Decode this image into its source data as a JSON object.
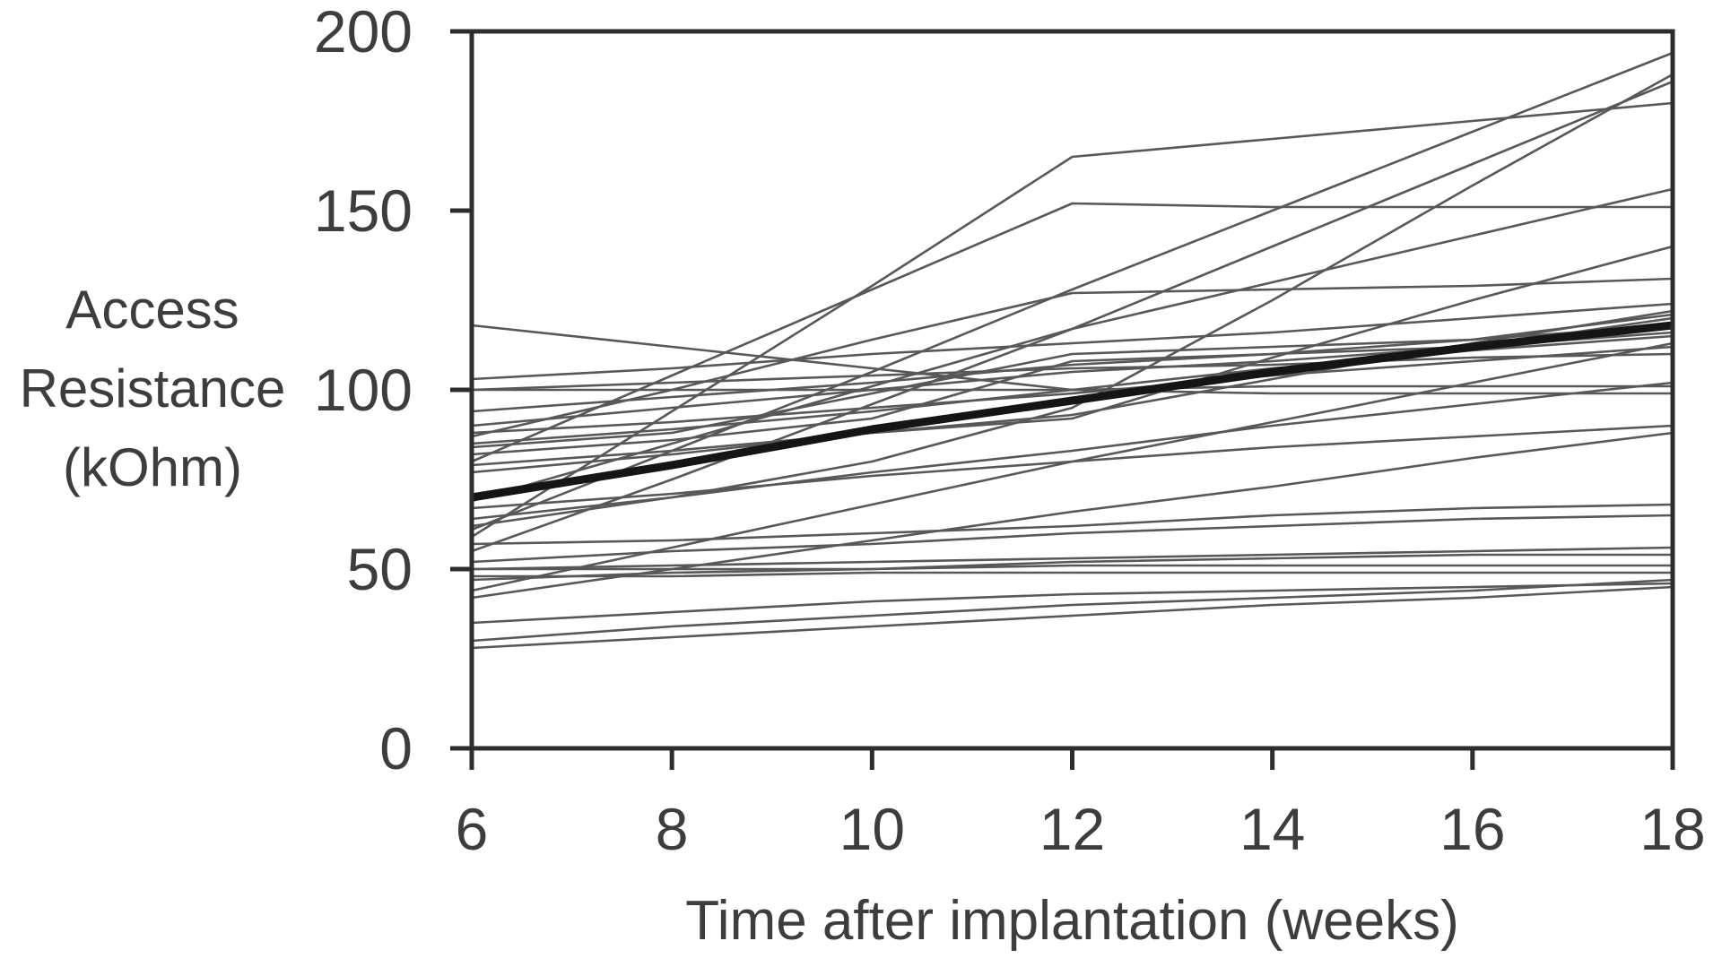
{
  "figure": {
    "background": "#ffffff"
  },
  "chart_data": {
    "type": "line",
    "title": "",
    "xlabel": "Time after implantation (weeks)",
    "ylabel": "Access Resistance (kOhm)",
    "ylabel_lines": [
      "Access",
      "Resistance",
      "(kOhm)"
    ],
    "x": [
      6,
      8,
      10,
      12,
      14,
      16,
      18
    ],
    "xlim": [
      6,
      18
    ],
    "ylim": [
      0,
      200
    ],
    "xticks": [
      6,
      8,
      10,
      12,
      14,
      16,
      18
    ],
    "yticks": [
      0,
      50,
      100,
      150,
      200
    ],
    "grid": false,
    "legend": "none",
    "styles": {
      "line_color": "#585858",
      "line_width": 2.6,
      "mean_color": "#151515",
      "mean_width": 9,
      "axis_color": "#2d2d2d",
      "axis_width": 5,
      "tick_len": 24,
      "text_color": "#3d3d3d"
    },
    "series": [
      {
        "name": "trace-01",
        "values": [
          118,
          112,
          106,
          100,
          99,
          99,
          99
        ]
      },
      {
        "name": "trace-02",
        "values": [
          103,
          106,
          110,
          113,
          116,
          120,
          124
        ]
      },
      {
        "name": "trace-03",
        "values": [
          100,
          100,
          100,
          100,
          101,
          101,
          101
        ]
      },
      {
        "name": "trace-04",
        "values": [
          100,
          102,
          104,
          106,
          107,
          109,
          110
        ]
      },
      {
        "name": "trace-05",
        "values": [
          94,
          98,
          102,
          107,
          110,
          114,
          118
        ]
      },
      {
        "name": "trace-06",
        "values": [
          90,
          95,
          100,
          105,
          108,
          112,
          116
        ]
      },
      {
        "name": "trace-07",
        "values": [
          88,
          91,
          95,
          99,
          104,
          108,
          112
        ]
      },
      {
        "name": "trace-08",
        "values": [
          87,
          100,
          114,
          127,
          128,
          129,
          131
        ]
      },
      {
        "name": "trace-09",
        "values": [
          85,
          89,
          94,
          100,
          106,
          111,
          115
        ]
      },
      {
        "name": "trace-10",
        "values": [
          84,
          88,
          99,
          110,
          112,
          114,
          121
        ]
      },
      {
        "name": "trace-11",
        "values": [
          82,
          86,
          92,
          108,
          110,
          112,
          120
        ]
      },
      {
        "name": "trace-12",
        "values": [
          80,
          104,
          128,
          152,
          151,
          151,
          151
        ]
      },
      {
        "name": "trace-13",
        "values": [
          79,
          83,
          88,
          92,
          109,
          125,
          140
        ]
      },
      {
        "name": "trace-14",
        "values": [
          77,
          82,
          88,
          93,
          103,
          113,
          122
        ]
      },
      {
        "name": "trace-15",
        "values": [
          69,
          85,
          101,
          117,
          130,
          143,
          156
        ]
      },
      {
        "name": "trace-16",
        "values": [
          67,
          71,
          76,
          80,
          84,
          87,
          90
        ]
      },
      {
        "name": "trace-17",
        "values": [
          64,
          70,
          77,
          83,
          90,
          96,
          102
        ]
      },
      {
        "name": "trace-18",
        "values": [
          62,
          70,
          80,
          95,
          125,
          157,
          188
        ]
      },
      {
        "name": "trace-19",
        "values": [
          61,
          83,
          105,
          128,
          150,
          172,
          194
        ]
      },
      {
        "name": "trace-20",
        "values": [
          59,
          94,
          129,
          165,
          170,
          175,
          180
        ]
      },
      {
        "name": "trace-21",
        "values": [
          57,
          58,
          60,
          62,
          65,
          67,
          68
        ]
      },
      {
        "name": "trace-22",
        "values": [
          55,
          75,
          96,
          117,
          140,
          163,
          186
        ]
      },
      {
        "name": "trace-23",
        "values": [
          52,
          55,
          57,
          60,
          62,
          64,
          65
        ]
      },
      {
        "name": "trace-24",
        "values": [
          50,
          51,
          52,
          53,
          54,
          55,
          56
        ]
      },
      {
        "name": "trace-25",
        "values": [
          50,
          50,
          50,
          51,
          51,
          51,
          51
        ]
      },
      {
        "name": "trace-26",
        "values": [
          48,
          48,
          49,
          49,
          49,
          49,
          49
        ]
      },
      {
        "name": "trace-27",
        "values": [
          47,
          49,
          50,
          52,
          53,
          54,
          54
        ]
      },
      {
        "name": "trace-28",
        "values": [
          44,
          56,
          68,
          80,
          91,
          102,
          113
        ]
      },
      {
        "name": "trace-29",
        "values": [
          42,
          50,
          58,
          66,
          73,
          81,
          88
        ]
      },
      {
        "name": "trace-30",
        "values": [
          35,
          38,
          41,
          43,
          44,
          45,
          46
        ]
      },
      {
        "name": "trace-31",
        "values": [
          30,
          34,
          37,
          40,
          42,
          44,
          47
        ]
      },
      {
        "name": "trace-32",
        "values": [
          28,
          31,
          34,
          37,
          40,
          42,
          45
        ]
      },
      {
        "name": "mean-trend",
        "role": "mean",
        "values": [
          70,
          79,
          89,
          97,
          105,
          112,
          118
        ]
      }
    ]
  }
}
